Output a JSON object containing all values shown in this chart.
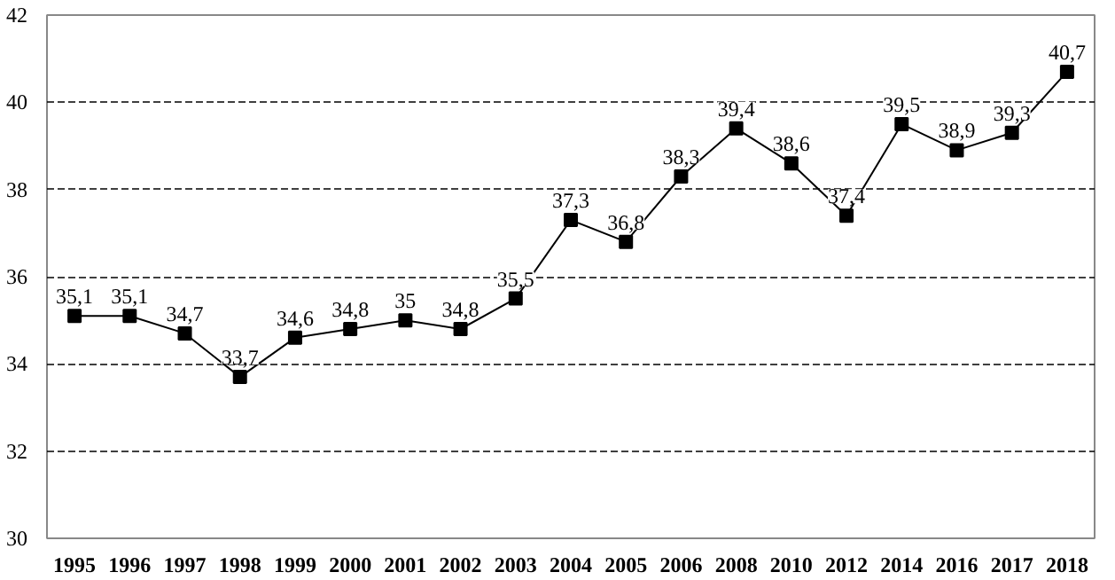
{
  "chart_data": {
    "type": "line",
    "categories": [
      "1995",
      "1996",
      "1997",
      "1998",
      "1999",
      "2000",
      "2001",
      "2002",
      "2003",
      "2004",
      "2005",
      "2006",
      "2008",
      "2010",
      "2012",
      "2014",
      "2016",
      "2017",
      "2018"
    ],
    "series": [
      {
        "color": "#000000",
        "values": [
          35.1,
          35.1,
          34.7,
          33.7,
          34.6,
          34.8,
          35,
          34.8,
          35.5,
          37.3,
          36.8,
          38.3,
          39.4,
          38.6,
          37.4,
          39.5,
          38.9,
          39.3,
          40.7
        ],
        "value_labels": [
          "35,1",
          "35,1",
          "34,7",
          "33,7",
          "34,6",
          "34,8",
          "35",
          "34,8",
          "35,5",
          "37,3",
          "36,8",
          "38,3",
          "39,4",
          "38,6",
          "37,4",
          "39,5",
          "38,9",
          "39,3",
          "40,7"
        ]
      }
    ],
    "ylim": [
      30,
      42
    ],
    "yticks": [
      30,
      32,
      34,
      36,
      38,
      40,
      42
    ],
    "grid": "y",
    "marker": "square",
    "line_style": "solid"
  }
}
